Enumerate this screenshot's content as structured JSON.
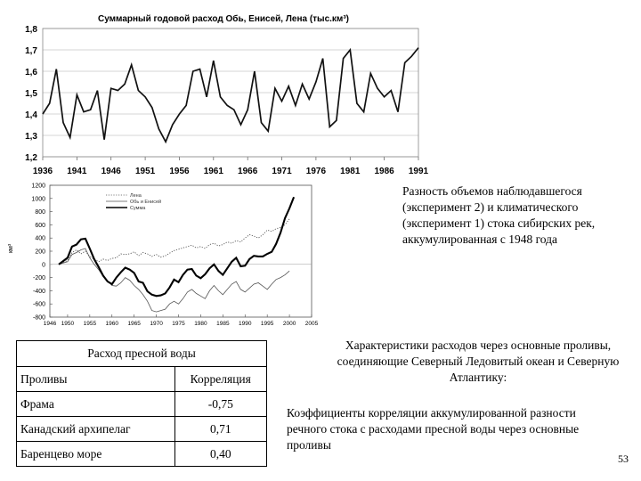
{
  "chart_data": [
    {
      "type": "line",
      "title": "Суммарный годовой расход Обь, Енисей, Лена (тыс.км³)",
      "xlim": [
        1936,
        1991
      ],
      "ylim": [
        1.2,
        1.8
      ],
      "x_ticks": [
        "1936",
        "1941",
        "1946",
        "1951",
        "1956",
        "1961",
        "1966",
        "1971",
        "1976",
        "1981",
        "1986",
        "1991"
      ],
      "y_ticks": [
        "1,2",
        "1,3",
        "1,4",
        "1,5",
        "1,6",
        "1,7",
        "1,8"
      ],
      "grid": "horizontal",
      "series": [
        {
          "values": [
            [
              1936,
              1.4
            ],
            [
              1937,
              1.45
            ],
            [
              1938,
              1.61
            ],
            [
              1939,
              1.36
            ],
            [
              1940,
              1.29
            ],
            [
              1941,
              1.49
            ],
            [
              1942,
              1.41
            ],
            [
              1943,
              1.42
            ],
            [
              1944,
              1.51
            ],
            [
              1945,
              1.28
            ],
            [
              1946,
              1.52
            ],
            [
              1947,
              1.51
            ],
            [
              1948,
              1.54
            ],
            [
              1949,
              1.63
            ],
            [
              1950,
              1.51
            ],
            [
              1951,
              1.48
            ],
            [
              1952,
              1.43
            ],
            [
              1953,
              1.33
            ],
            [
              1954,
              1.27
            ],
            [
              1955,
              1.35
            ],
            [
              1956,
              1.4
            ],
            [
              1957,
              1.44
            ],
            [
              1958,
              1.6
            ],
            [
              1959,
              1.61
            ],
            [
              1960,
              1.48
            ],
            [
              1961,
              1.65
            ],
            [
              1962,
              1.48
            ],
            [
              1963,
              1.44
            ],
            [
              1964,
              1.42
            ],
            [
              1965,
              1.35
            ],
            [
              1966,
              1.42
            ],
            [
              1967,
              1.6
            ],
            [
              1968,
              1.36
            ],
            [
              1969,
              1.32
            ],
            [
              1970,
              1.52
            ],
            [
              1971,
              1.46
            ],
            [
              1972,
              1.53
            ],
            [
              1973,
              1.44
            ],
            [
              1974,
              1.54
            ],
            [
              1975,
              1.47
            ],
            [
              1976,
              1.55
            ],
            [
              1977,
              1.66
            ],
            [
              1978,
              1.34
            ],
            [
              1979,
              1.37
            ],
            [
              1980,
              1.66
            ],
            [
              1981,
              1.7
            ],
            [
              1982,
              1.45
            ],
            [
              1983,
              1.41
            ],
            [
              1984,
              1.59
            ],
            [
              1985,
              1.52
            ],
            [
              1986,
              1.48
            ],
            [
              1987,
              1.51
            ],
            [
              1988,
              1.41
            ],
            [
              1989,
              1.64
            ],
            [
              1990,
              1.67
            ],
            [
              1991,
              1.71
            ]
          ]
        }
      ]
    },
    {
      "type": "line",
      "ylabel": "км³",
      "xlim": [
        1946,
        2005
      ],
      "ylim": [
        -800,
        1200
      ],
      "x_ticks": [
        "1946",
        "1950",
        "1955",
        "1960",
        "1965",
        "1970",
        "1975",
        "1980",
        "1985",
        "1990",
        "1995",
        "2000",
        "2005"
      ],
      "y_ticks": [
        "-800",
        "-600",
        "-400",
        "-200",
        "0",
        "200",
        "400",
        "600",
        "800",
        "1000",
        "1200"
      ],
      "legend_position": "top-left",
      "series": [
        {
          "name": "Лена",
          "style": "dotted",
          "values": [
            [
              1948,
              0
            ],
            [
              1950,
              60
            ],
            [
              1951,
              180
            ],
            [
              1952,
              220
            ],
            [
              1953,
              160
            ],
            [
              1954,
              200
            ],
            [
              1955,
              120
            ],
            [
              1956,
              80
            ],
            [
              1957,
              40
            ],
            [
              1958,
              80
            ],
            [
              1959,
              60
            ],
            [
              1960,
              90
            ],
            [
              1961,
              100
            ],
            [
              1962,
              160
            ],
            [
              1963,
              150
            ],
            [
              1964,
              160
            ],
            [
              1965,
              190
            ],
            [
              1966,
              130
            ],
            [
              1967,
              180
            ],
            [
              1968,
              160
            ],
            [
              1969,
              120
            ],
            [
              1970,
              150
            ],
            [
              1971,
              110
            ],
            [
              1972,
              130
            ],
            [
              1973,
              170
            ],
            [
              1974,
              210
            ],
            [
              1975,
              230
            ],
            [
              1976,
              250
            ],
            [
              1977,
              270
            ],
            [
              1978,
              290
            ],
            [
              1979,
              250
            ],
            [
              1980,
              270
            ],
            [
              1981,
              240
            ],
            [
              1982,
              300
            ],
            [
              1983,
              320
            ],
            [
              1984,
              280
            ],
            [
              1985,
              300
            ],
            [
              1986,
              340
            ],
            [
              1987,
              320
            ],
            [
              1988,
              360
            ],
            [
              1989,
              340
            ],
            [
              1990,
              400
            ],
            [
              1991,
              450
            ],
            [
              1992,
              430
            ],
            [
              1993,
              400
            ],
            [
              1994,
              450
            ],
            [
              1995,
              520
            ],
            [
              1996,
              500
            ],
            [
              1997,
              540
            ],
            [
              1998,
              560
            ],
            [
              1999,
              600
            ],
            [
              2000,
              690
            ]
          ]
        },
        {
          "name": "Обь и Енисей",
          "style": "thin",
          "values": [
            [
              1948,
              0
            ],
            [
              1950,
              40
            ],
            [
              1951,
              150
            ],
            [
              1952,
              180
            ],
            [
              1953,
              220
            ],
            [
              1954,
              240
            ],
            [
              1955,
              100
            ],
            [
              1956,
              0
            ],
            [
              1957,
              -80
            ],
            [
              1958,
              -180
            ],
            [
              1959,
              -250
            ],
            [
              1960,
              -320
            ],
            [
              1961,
              -330
            ],
            [
              1962,
              -280
            ],
            [
              1963,
              -200
            ],
            [
              1964,
              -240
            ],
            [
              1965,
              -320
            ],
            [
              1966,
              -380
            ],
            [
              1967,
              -460
            ],
            [
              1968,
              -560
            ],
            [
              1969,
              -700
            ],
            [
              1970,
              -720
            ],
            [
              1971,
              -700
            ],
            [
              1972,
              -680
            ],
            [
              1973,
              -600
            ],
            [
              1974,
              -560
            ],
            [
              1975,
              -600
            ],
            [
              1976,
              -520
            ],
            [
              1977,
              -420
            ],
            [
              1978,
              -380
            ],
            [
              1979,
              -440
            ],
            [
              1980,
              -480
            ],
            [
              1981,
              -520
            ],
            [
              1982,
              -400
            ],
            [
              1983,
              -320
            ],
            [
              1984,
              -400
            ],
            [
              1985,
              -460
            ],
            [
              1986,
              -380
            ],
            [
              1987,
              -300
            ],
            [
              1988,
              -260
            ],
            [
              1989,
              -380
            ],
            [
              1990,
              -420
            ],
            [
              1991,
              -360
            ],
            [
              1992,
              -300
            ],
            [
              1993,
              -280
            ],
            [
              1994,
              -330
            ],
            [
              1995,
              -380
            ],
            [
              1996,
              -300
            ],
            [
              1997,
              -230
            ],
            [
              1998,
              -200
            ],
            [
              1999,
              -160
            ],
            [
              2000,
              -100
            ]
          ]
        },
        {
          "name": "Сумма",
          "style": "thick",
          "values": [
            [
              1948,
              0
            ],
            [
              1950,
              100
            ],
            [
              1951,
              270
            ],
            [
              1952,
              300
            ],
            [
              1953,
              380
            ],
            [
              1954,
              390
            ],
            [
              1955,
              240
            ],
            [
              1956,
              80
            ],
            [
              1957,
              -40
            ],
            [
              1958,
              -170
            ],
            [
              1959,
              -260
            ],
            [
              1960,
              -300
            ],
            [
              1961,
              -200
            ],
            [
              1962,
              -120
            ],
            [
              1963,
              -50
            ],
            [
              1964,
              -80
            ],
            [
              1965,
              -130
            ],
            [
              1966,
              -260
            ],
            [
              1967,
              -280
            ],
            [
              1968,
              -410
            ],
            [
              1969,
              -460
            ],
            [
              1970,
              -480
            ],
            [
              1971,
              -470
            ],
            [
              1972,
              -440
            ],
            [
              1973,
              -350
            ],
            [
              1974,
              -230
            ],
            [
              1975,
              -270
            ],
            [
              1976,
              -160
            ],
            [
              1977,
              -80
            ],
            [
              1978,
              -70
            ],
            [
              1979,
              -170
            ],
            [
              1980,
              -210
            ],
            [
              1981,
              -150
            ],
            [
              1982,
              -60
            ],
            [
              1983,
              0
            ],
            [
              1984,
              -100
            ],
            [
              1985,
              -160
            ],
            [
              1986,
              -60
            ],
            [
              1987,
              40
            ],
            [
              1988,
              100
            ],
            [
              1989,
              -30
            ],
            [
              1990,
              -20
            ],
            [
              1991,
              80
            ],
            [
              1992,
              130
            ],
            [
              1993,
              120
            ],
            [
              1994,
              120
            ],
            [
              1995,
              160
            ],
            [
              1996,
              190
            ],
            [
              1997,
              310
            ],
            [
              1998,
              480
            ],
            [
              1999,
              700
            ],
            [
              2000,
              850
            ],
            [
              2001,
              1020
            ]
          ]
        }
      ]
    }
  ],
  "captions": {
    "top": "Разность объемов наблюдавшегося (эксперимент 2) и климатического (эксперимент 1) стока сибирских рек, аккумулированная с 1948 года",
    "middle": "Характеристики расходов через основные проливы, соединяющие Северный Ледовитый океан и Северную Атлантику:",
    "bottom": "Коэффициенты корреляции аккумулированной разности  речного стока с расходами пресной воды через основные проливы"
  },
  "table": {
    "title": "Расход пресной воды",
    "col_strait": "Проливы",
    "col_corr": "Корреляция",
    "rows": [
      {
        "strait": "Фрама",
        "corr": "-0,75"
      },
      {
        "strait": "Канадский архипелаг",
        "corr": "0,71"
      },
      {
        "strait": "Баренцево море",
        "corr": "0,40"
      }
    ]
  },
  "page_number": "53"
}
